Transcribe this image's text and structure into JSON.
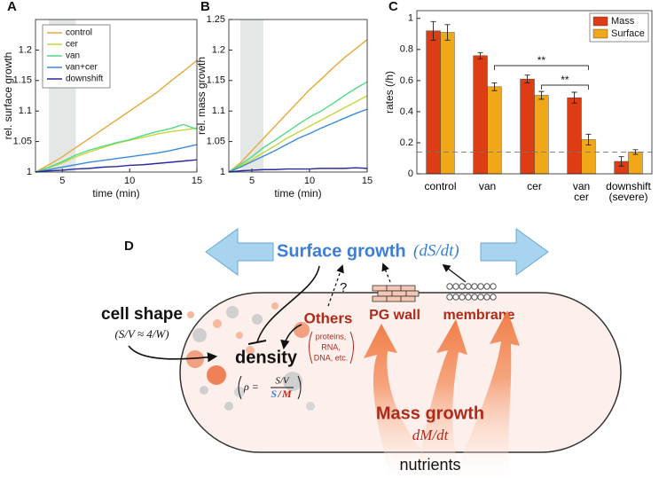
{
  "chart_data": [
    {
      "type": "line",
      "panel": "A",
      "ylabel": "rel. surface growth",
      "xlabel": "time (min)",
      "x": [
        3,
        4,
        5,
        6,
        7,
        8,
        9,
        10,
        11,
        12,
        13,
        14,
        15
      ],
      "xlim": [
        3,
        15
      ],
      "xticks": [
        5,
        10,
        15
      ],
      "ylim": [
        1,
        1.25
      ],
      "yticks": [
        1,
        1.05,
        1.1,
        1.15,
        1.2
      ],
      "shaded_region": [
        4,
        6
      ],
      "legend": "upper left",
      "series": [
        {
          "name": "control",
          "color": "#e8a838",
          "values": [
            1,
            1.012,
            1.025,
            1.04,
            1.055,
            1.07,
            1.085,
            1.1,
            1.115,
            1.13,
            1.148,
            1.165,
            1.183
          ]
        },
        {
          "name": "cer",
          "color": "#c5d63e",
          "values": [
            1,
            1.007,
            1.015,
            1.025,
            1.033,
            1.04,
            1.047,
            1.052,
            1.057,
            1.062,
            1.066,
            1.069,
            1.072
          ]
        },
        {
          "name": "van",
          "color": "#4fdc84",
          "values": [
            1,
            1.008,
            1.017,
            1.028,
            1.036,
            1.042,
            1.048,
            1.053,
            1.06,
            1.066,
            1.071,
            1.078,
            1.07
          ]
        },
        {
          "name": "van+cer",
          "color": "#3a8ad8",
          "values": [
            1,
            1.004,
            1.008,
            1.012,
            1.016,
            1.019,
            1.022,
            1.025,
            1.028,
            1.031,
            1.035,
            1.04,
            1.045
          ]
        },
        {
          "name": "downshift",
          "color": "#2a2aa0",
          "values": [
            1,
            1.002,
            1.003,
            1.005,
            1.006,
            1.008,
            1.009,
            1.011,
            1.012,
            1.014,
            1.016,
            1.018,
            1.02
          ]
        }
      ]
    },
    {
      "type": "line",
      "panel": "B",
      "ylabel": "rel. mass growth",
      "xlabel": "time (min)",
      "x": [
        3,
        4,
        5,
        6,
        7,
        8,
        9,
        10,
        11,
        12,
        13,
        14,
        15
      ],
      "xlim": [
        3,
        15
      ],
      "xticks": [
        5,
        10,
        15
      ],
      "ylim": [
        1,
        1.25
      ],
      "yticks": [
        1,
        1.05,
        1.1,
        1.15,
        1.2,
        1.25
      ],
      "shaded_region": [
        4,
        6
      ],
      "series": [
        {
          "color": "#e8a838",
          "values": [
            1,
            1.015,
            1.035,
            1.055,
            1.075,
            1.095,
            1.115,
            1.135,
            1.152,
            1.17,
            1.187,
            1.202,
            1.217
          ]
        },
        {
          "color": "#c5d63e",
          "values": [
            1,
            1.01,
            1.02,
            1.032,
            1.043,
            1.055,
            1.065,
            1.075,
            1.085,
            1.095,
            1.105,
            1.115,
            1.125
          ]
        },
        {
          "color": "#4fdc84",
          "values": [
            1,
            1.012,
            1.025,
            1.04,
            1.052,
            1.065,
            1.078,
            1.09,
            1.1,
            1.112,
            1.125,
            1.137,
            1.148
          ]
        },
        {
          "color": "#3a8ad8",
          "values": [
            1,
            1.008,
            1.017,
            1.026,
            1.035,
            1.045,
            1.055,
            1.063,
            1.072,
            1.08,
            1.088,
            1.096,
            1.103
          ]
        },
        {
          "color": "#2a2aa0",
          "values": [
            1,
            1.002,
            1.003,
            1.004,
            1.004,
            1.005,
            1.005,
            1.005,
            1.006,
            1.006,
            1.006,
            1.007,
            1.006
          ]
        }
      ]
    },
    {
      "type": "bar",
      "panel": "C",
      "ylabel": "rates (/h)",
      "categories": [
        "control",
        "van",
        "cer",
        "van\ncer",
        "downshift\n(severe)"
      ],
      "ylim": [
        0,
        1.05
      ],
      "yticks": [
        0,
        0.2,
        0.4,
        0.6,
        0.8,
        1
      ],
      "reference_line": 0.14,
      "legend": "upper right",
      "series": [
        {
          "name": "Mass",
          "color": "#dd3c14",
          "values": [
            0.92,
            0.76,
            0.61,
            0.49,
            0.08
          ],
          "errors": [
            0.06,
            0.02,
            0.025,
            0.035,
            0.03
          ]
        },
        {
          "name": "Surface",
          "color": "#f0a818",
          "values": [
            0.91,
            0.56,
            0.505,
            0.22,
            0.14
          ],
          "errors": [
            0.05,
            0.025,
            0.025,
            0.035,
            0.015
          ]
        }
      ],
      "annotations": [
        {
          "text": "**",
          "from": 1,
          "to": 3
        },
        {
          "text": "**",
          "from": 2,
          "to": 3
        }
      ]
    }
  ],
  "diagram": {
    "panel": "D",
    "surface_growth": "Surface growth",
    "surface_rate": "(dS/dt)",
    "cell_shape": "cell shape",
    "shape_relation": "(S/V ≈ 4/W)",
    "density": "density",
    "density_formula": {
      "rho": "ρ =",
      "numerator": "S/V",
      "denominator_s": "S",
      "denominator_slash": "/",
      "denominator_m": "M"
    },
    "others": "Others",
    "others_detail": [
      "proteins,",
      "RNA,",
      "DNA, etc."
    ],
    "question": "?",
    "pg_wall": "PG wall",
    "membrane": "membrane",
    "mass_growth": "Mass growth",
    "mass_rate": "dM/dt",
    "nutrients": "nutrients"
  }
}
